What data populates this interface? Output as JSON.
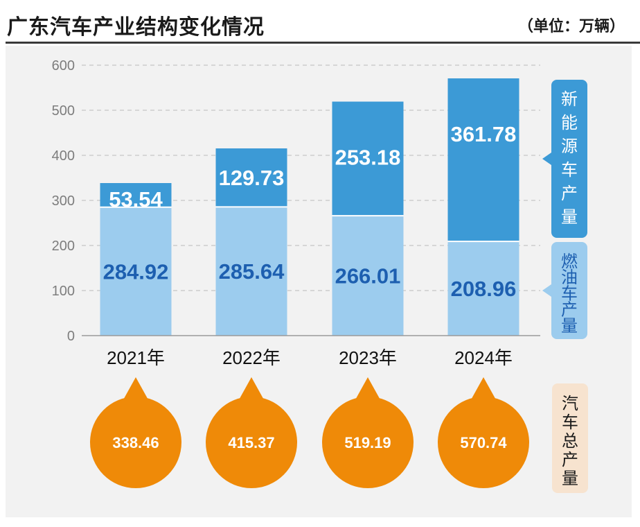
{
  "header": {
    "title": "广东汽车产业结构变化情况",
    "unit": "（单位：万辆）"
  },
  "chart_data": {
    "type": "bar",
    "stacked": true,
    "categories": [
      "2021年",
      "2022年",
      "2023年",
      "2024年"
    ],
    "series": [
      {
        "name": "燃油车产量",
        "values": [
          284.92,
          285.64,
          266.01,
          208.96
        ],
        "color": "#9cccee",
        "label_color": "#1d5fb0"
      },
      {
        "name": "新能源车产量",
        "values": [
          53.54,
          129.73,
          253.18,
          361.78
        ],
        "color": "#3c9ad6",
        "label_color": "#ffffff"
      }
    ],
    "totals": {
      "name": "汽车总产量",
      "values": [
        338.46,
        415.37,
        519.19,
        570.74
      ],
      "color": "#ef8a08"
    },
    "ylim": [
      0,
      600
    ],
    "yticks": [
      0,
      100,
      200,
      300,
      400,
      500,
      600
    ],
    "value_labels": [
      "284.92",
      "285.64",
      "266.01",
      "208.96",
      "53.54",
      "129.73",
      "253.18",
      "361.78"
    ],
    "total_labels": [
      "338.46",
      "415.37",
      "519.19",
      "570.74"
    ],
    "grid": true,
    "legend": "right"
  }
}
